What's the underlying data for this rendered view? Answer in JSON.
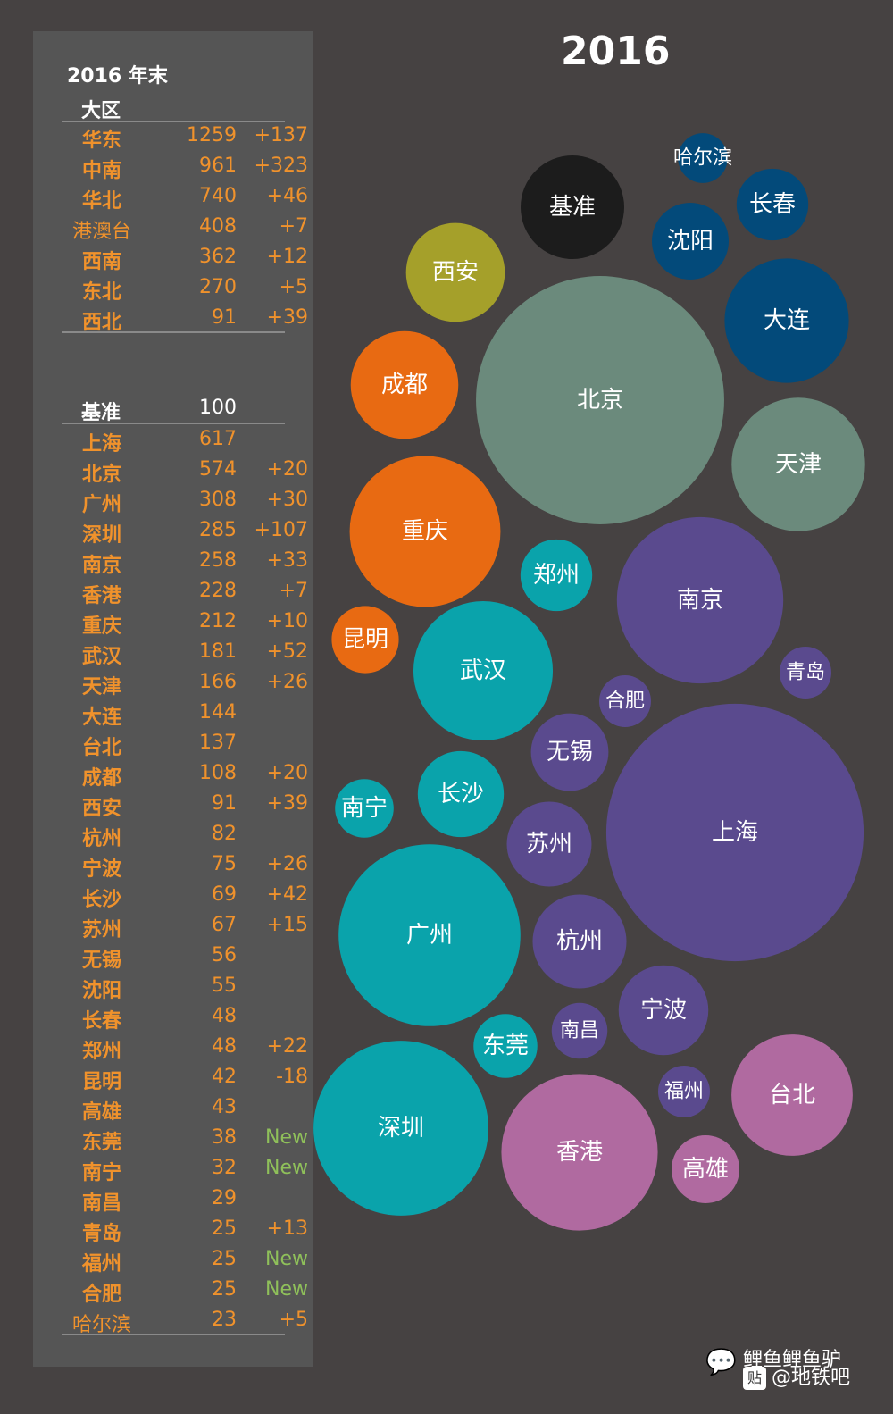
{
  "panel": {
    "title": "2016 年末",
    "region_header": "大区",
    "regions": [
      {
        "name": "华东",
        "value": "1259",
        "change": "+137"
      },
      {
        "name": "中南",
        "value": "961",
        "change": "+323"
      },
      {
        "name": "华北",
        "value": "740",
        "change": "+46"
      },
      {
        "name": "港澳台",
        "value": "408",
        "change": "+7"
      },
      {
        "name": "西南",
        "value": "362",
        "change": "+12"
      },
      {
        "name": "东北",
        "value": "270",
        "change": "+5"
      },
      {
        "name": "西北",
        "value": "91",
        "change": "+39"
      }
    ],
    "baseline_name": "基准",
    "baseline_value": "100",
    "cities": [
      {
        "name": "上海",
        "value": "617",
        "change": ""
      },
      {
        "name": "北京",
        "value": "574",
        "change": "+20"
      },
      {
        "name": "广州",
        "value": "308",
        "change": "+30"
      },
      {
        "name": "深圳",
        "value": "285",
        "change": "+107"
      },
      {
        "name": "南京",
        "value": "258",
        "change": "+33"
      },
      {
        "name": "香港",
        "value": "228",
        "change": "+7"
      },
      {
        "name": "重庆",
        "value": "212",
        "change": "+10"
      },
      {
        "name": "武汉",
        "value": "181",
        "change": "+52"
      },
      {
        "name": "天津",
        "value": "166",
        "change": "+26"
      },
      {
        "name": "大连",
        "value": "144",
        "change": ""
      },
      {
        "name": "台北",
        "value": "137",
        "change": ""
      },
      {
        "name": "成都",
        "value": "108",
        "change": "+20"
      },
      {
        "name": "西安",
        "value": "91",
        "change": "+39"
      },
      {
        "name": "杭州",
        "value": "82",
        "change": ""
      },
      {
        "name": "宁波",
        "value": "75",
        "change": "+26"
      },
      {
        "name": "长沙",
        "value": "69",
        "change": "+42"
      },
      {
        "name": "苏州",
        "value": "67",
        "change": "+15"
      },
      {
        "name": "无锡",
        "value": "56",
        "change": ""
      },
      {
        "name": "沈阳",
        "value": "55",
        "change": ""
      },
      {
        "name": "长春",
        "value": "48",
        "change": ""
      },
      {
        "name": "郑州",
        "value": "48",
        "change": "+22"
      },
      {
        "name": "昆明",
        "value": "42",
        "change": "-18"
      },
      {
        "name": "高雄",
        "value": "43",
        "change": ""
      },
      {
        "name": "东莞",
        "value": "38",
        "change": "New"
      },
      {
        "name": "南宁",
        "value": "32",
        "change": "New"
      },
      {
        "name": "南昌",
        "value": "29",
        "change": ""
      },
      {
        "name": "青岛",
        "value": "25",
        "change": "+13"
      },
      {
        "name": "福州",
        "value": "25",
        "change": "New"
      },
      {
        "name": "合肥",
        "value": "25",
        "change": "New"
      },
      {
        "name": "哈尔滨",
        "value": "23",
        "change": "+5"
      }
    ]
  },
  "colors": {
    "label_orange": "#f0922c",
    "new_green": "#8fc05a",
    "baseline": "#1c1c1c",
    "华北": "#6b8a7c",
    "西北": "#a5a02a",
    "西南": "#e86a12",
    "中南": "#0aa3ab",
    "华东": "#5a4a8e",
    "东北": "#034a7a",
    "港澳台": "#b06aa0"
  },
  "chart_data": {
    "type": "bubble",
    "title": "2016",
    "measure": "value",
    "bubbles": [
      {
        "label": "基准",
        "value": 100,
        "group": "baseline"
      },
      {
        "label": "上海",
        "value": 617,
        "group": "华东"
      },
      {
        "label": "北京",
        "value": 574,
        "group": "华北"
      },
      {
        "label": "广州",
        "value": 308,
        "group": "中南"
      },
      {
        "label": "深圳",
        "value": 285,
        "group": "中南"
      },
      {
        "label": "南京",
        "value": 258,
        "group": "华东"
      },
      {
        "label": "香港",
        "value": 228,
        "group": "港澳台"
      },
      {
        "label": "重庆",
        "value": 212,
        "group": "西南"
      },
      {
        "label": "武汉",
        "value": 181,
        "group": "中南"
      },
      {
        "label": "天津",
        "value": 166,
        "group": "华北"
      },
      {
        "label": "大连",
        "value": 144,
        "group": "东北"
      },
      {
        "label": "台北",
        "value": 137,
        "group": "港澳台"
      },
      {
        "label": "成都",
        "value": 108,
        "group": "西南"
      },
      {
        "label": "西安",
        "value": 91,
        "group": "西北"
      },
      {
        "label": "杭州",
        "value": 82,
        "group": "华东"
      },
      {
        "label": "宁波",
        "value": 75,
        "group": "华东"
      },
      {
        "label": "长沙",
        "value": 69,
        "group": "中南"
      },
      {
        "label": "苏州",
        "value": 67,
        "group": "华东"
      },
      {
        "label": "无锡",
        "value": 56,
        "group": "华东"
      },
      {
        "label": "沈阳",
        "value": 55,
        "group": "东北"
      },
      {
        "label": "长春",
        "value": 48,
        "group": "东北"
      },
      {
        "label": "郑州",
        "value": 48,
        "group": "中南"
      },
      {
        "label": "昆明",
        "value": 42,
        "group": "西南"
      },
      {
        "label": "高雄",
        "value": 43,
        "group": "港澳台"
      },
      {
        "label": "东莞",
        "value": 38,
        "group": "中南"
      },
      {
        "label": "南宁",
        "value": 32,
        "group": "中南"
      },
      {
        "label": "南昌",
        "value": 29,
        "group": "华东"
      },
      {
        "label": "青岛",
        "value": 25,
        "group": "华东"
      },
      {
        "label": "福州",
        "value": 25,
        "group": "华东"
      },
      {
        "label": "合肥",
        "value": 25,
        "group": "华东"
      },
      {
        "label": "哈尔滨",
        "value": 23,
        "group": "东北"
      }
    ]
  },
  "watermark": {
    "line1": "鲤鱼鲤鱼驴",
    "line2": "@地铁吧",
    "tieba_glyph": "贴",
    "icon": "wechat-icon"
  }
}
